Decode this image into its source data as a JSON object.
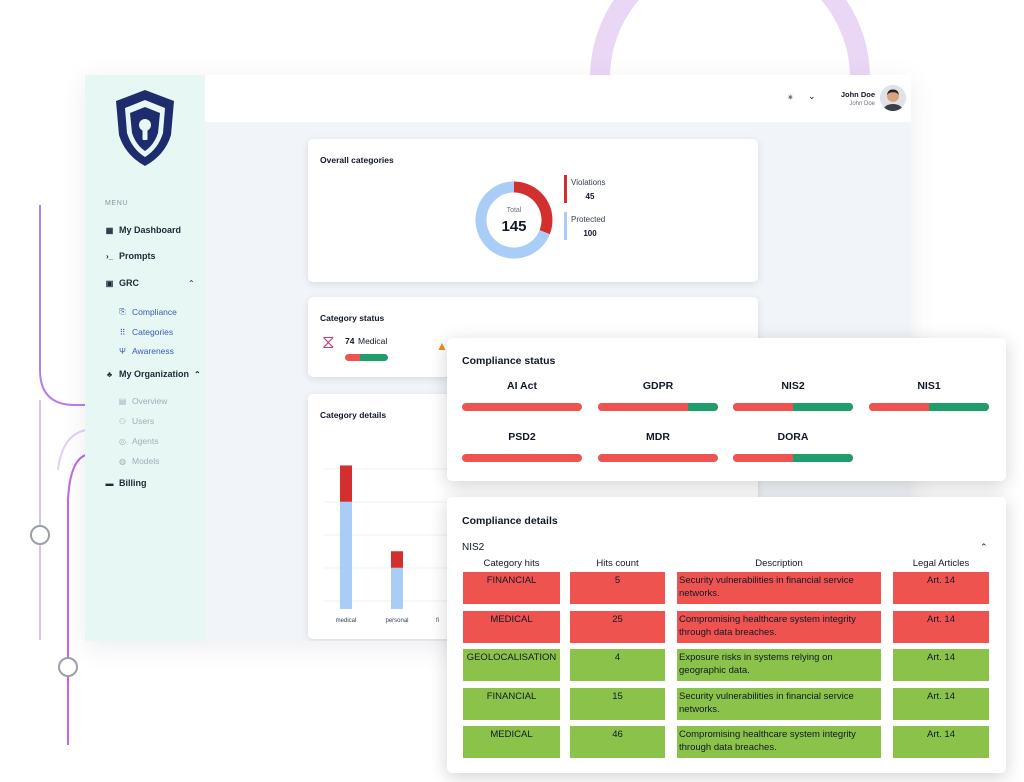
{
  "sidebar": {
    "menu_caption": "MENU",
    "items": [
      {
        "label": "My Dashboard",
        "icon": "dashboard-icon"
      },
      {
        "label": "Prompts",
        "icon": "terminal-icon"
      },
      {
        "label": "GRC",
        "icon": "grc-icon"
      },
      {
        "label": "Compliance",
        "icon": "clipboard-icon"
      },
      {
        "label": "Categories",
        "icon": "grid-icon"
      },
      {
        "label": "Awareness",
        "icon": "antenna-icon"
      },
      {
        "label": "My Organization",
        "icon": "organization-icon"
      },
      {
        "label": "Overview",
        "icon": "document-icon"
      },
      {
        "label": "Users",
        "icon": "users-icon"
      },
      {
        "label": "Agents",
        "icon": "agent-icon"
      },
      {
        "label": "Models",
        "icon": "model-icon"
      },
      {
        "label": "Billing",
        "icon": "billing-icon"
      }
    ]
  },
  "header": {
    "user_name": "John Doe",
    "user_subtitle": "John Doe"
  },
  "overall": {
    "title": "Overall categories",
    "total_label": "Total",
    "total_value": "145",
    "legend": [
      {
        "label": "Violations",
        "value": "45",
        "color": "#d32f2f"
      },
      {
        "label": "Protected",
        "value": "100",
        "color": "#a9cdf7"
      }
    ]
  },
  "chart_data": {
    "type": "pie",
    "labels": [
      "Violations",
      "Protected"
    ],
    "values": [
      45,
      100
    ],
    "colors": [
      "#d32f2f",
      "#a9cdf7"
    ]
  },
  "category_status": {
    "title": "Category status",
    "medical_count": "74",
    "medical_label": "Medical"
  },
  "category_details": {
    "title": "Category details",
    "bars": [
      {
        "label": "medical",
        "protected": 65,
        "violations": 22
      },
      {
        "label": "personal",
        "protected": 25,
        "violations": 10
      }
    ],
    "ymax": 100,
    "third_label": "fi"
  },
  "compliance_status": {
    "title": "Compliance status",
    "standards": [
      {
        "name": "AI Act",
        "compliant_fraction": 0
      },
      {
        "name": "GDPR",
        "compliant_fraction": 0.25
      },
      {
        "name": "NIS2",
        "compliant_fraction": 0.5
      },
      {
        "name": "NIS1",
        "compliant_fraction": 0.5
      },
      {
        "name": "PSD2",
        "compliant_fraction": 0
      },
      {
        "name": "MDR",
        "compliant_fraction": 0
      },
      {
        "name": "DORA",
        "compliant_fraction": 0.5
      }
    ]
  },
  "compliance_details": {
    "title": "Compliance details",
    "selected_standard": "NIS2",
    "columns": [
      "Category hits",
      "Hits count",
      "Description",
      "Legal Articles"
    ],
    "rows": [
      {
        "category": "FINANCIAL",
        "count": "5",
        "description": "Security vulnerabilities in financial service networks.",
        "article": "Art. 14",
        "status": "violation"
      },
      {
        "category": "MEDICAL",
        "count": "25",
        "description": "Compromising healthcare system integrity through data breaches.",
        "article": "Art. 14",
        "status": "violation"
      },
      {
        "category": "GEOLOCALISATION",
        "count": "4",
        "description": "Exposure risks in systems relying on geographic data.",
        "article": "Art. 14",
        "status": "protected"
      },
      {
        "category": "FINANCIAL",
        "count": "15",
        "description": "Security vulnerabilities in financial service networks.",
        "article": "Art. 14",
        "status": "protected"
      },
      {
        "category": "MEDICAL",
        "count": "46",
        "description": "Compromising healthcare system integrity through data breaches.",
        "article": "Art. 14",
        "status": "protected"
      }
    ]
  }
}
